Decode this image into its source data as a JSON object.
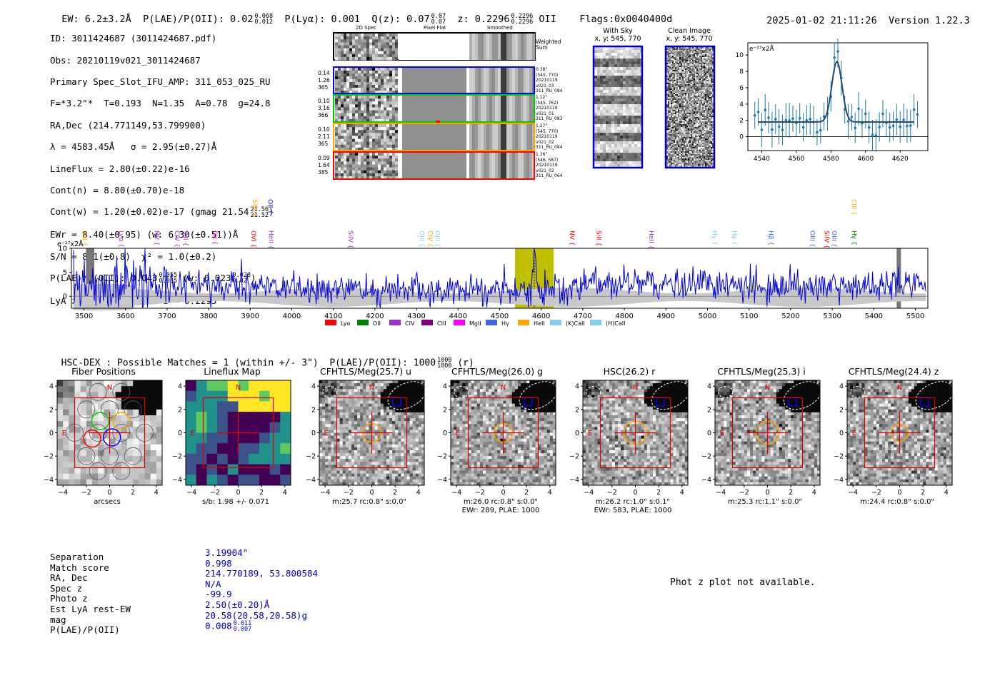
{
  "header": {
    "ew": "EW: 6.2±3.2Å",
    "plae": "P(LAE)/P(OII): 0.02",
    "plae_hi": "0.068",
    "plae_lo": "0.012",
    "plya": "P(Lyα): 0.001",
    "qz": "Q(z): 0.07",
    "qz_hi": "0.07",
    "qz_lo": "0.07",
    "z": "z: 0.2296",
    "z_hi": "0.2296",
    "z_lo": "0.2296",
    "z_line": "OII",
    "flags": "Flags:0x0040400d",
    "datetime": "2025-01-02 21:11:26",
    "version": "Version 1.22.3"
  },
  "info": {
    "l1": "ID: 3011424687 (3011424687.pdf)",
    "l2": "Obs: 20210119v021_3011424687",
    "l3": "Primary Spec_Slot_IFU_AMP: 311_053_025_RU",
    "l4": "F=*3.2\"*  T=0.193  N=1.35  A=0.78  g=24.8",
    "l5": "RA,Dec (214.771149,53.799900)",
    "l6": "λ = 4583.45Å   σ = 2.95(±0.27)Å",
    "l7": "LineFlux = 2.80(±0.22)e-16",
    "l8": "Cont(n) = 8.80(±0.70)e-18",
    "l9": "Cont(w) = 1.20(±0.02)e-17 (gmag 21.54",
    "l9_hi": "21.56",
    "l9_lo": "21.52",
    "l9_end": ")",
    "l10": "EWr = 8.40(±0.95) (w: 6.30(±0.51))Å",
    "l11": "S/N = 8.1(±0.8)  χ² = 1.0(±0.2)",
    "l12": "P(LAE)/P(OII): 0.043",
    "l12_hi": "0.055",
    "l12_lo": "0.035",
    "l12_mid": " (w: 0.023",
    "l12_hi2": "0.028",
    "l12_lo2": "0.02",
    "l12_end": ")",
    "l13": "LyA z = 2.7703   OII z = 0.2295"
  },
  "cutouts": {
    "col_titles": [
      "2D Spec",
      "Pixel Flat",
      "Smoothed"
    ],
    "weighted_sum": "Weighted Sum",
    "rows": [
      {
        "left": [
          "0.14",
          "1.26",
          "365"
        ],
        "right": [
          "0.38\"",
          "(545, 770)",
          "20210119",
          "v021_03",
          "311_RU_084"
        ],
        "color": "#0000ff"
      },
      {
        "left": [
          "0.10",
          "3.16",
          "366"
        ],
        "right": [
          "1.12\"",
          "(545, 762)",
          "20210119",
          "v021_01",
          "311_RU_083"
        ],
        "color": "#00cc00"
      },
      {
        "left": [
          "0.10",
          "2.11",
          "365"
        ],
        "right": [
          "1.27\"",
          "(545, 770)",
          "20210119",
          "v021_02",
          "311_RU_084"
        ],
        "color": "#ffa500"
      },
      {
        "left": [
          "0.09",
          "1.64",
          "385"
        ],
        "right": [
          "1.36\"",
          "(546, 587)",
          "20210119",
          "v021_02",
          "311_RU_064"
        ],
        "color": "#ff0000"
      }
    ],
    "with_sky_title": "With Sky",
    "with_sky_xy": "x, y: 545, 770",
    "clean_title": "Clean Image",
    "clean_xy": "x, y: 545, 770"
  },
  "line_fit": {
    "ylabel": "e⁻¹⁷x2Å",
    "xticks": [
      "4540",
      "4560",
      "4580",
      "4600",
      "4620"
    ],
    "yticks": [
      "0",
      "2",
      "4",
      "6",
      "8",
      "10"
    ]
  },
  "chart_data": {
    "type": "line",
    "title": "",
    "ylabel": "e⁻¹⁷x2Å",
    "xlim": [
      3470,
      5530
    ],
    "ylim": [
      -2.5,
      10
    ],
    "xticks": [
      3500,
      3600,
      3700,
      3800,
      3900,
      4000,
      4100,
      4200,
      4300,
      4400,
      4500,
      4600,
      4700,
      4800,
      4900,
      5000,
      5100,
      5200,
      5300,
      5400,
      5500
    ],
    "yticks": [
      0,
      5,
      10
    ],
    "highlight_range": [
      4537,
      4630
    ],
    "emission_line": 4583.45,
    "masked_ranges": [
      [
        3505,
        3525
      ],
      [
        5455,
        5465
      ]
    ],
    "line_markers": [
      {
        "name": "SiII",
        "x": 3497,
        "color": "#ffa500",
        "row": "low"
      },
      {
        "name": "Lyα",
        "x": 3585,
        "color": "#9932cc",
        "row": "low"
      },
      {
        "name": "NV",
        "x": 3670,
        "color": "#9932cc",
        "row": "low"
      },
      {
        "name": "CIV",
        "x": 3719,
        "color": "#9932cc",
        "row": "low"
      },
      {
        "name": "SiII",
        "x": 3740,
        "color": "#9932cc",
        "row": "low"
      },
      {
        "name": "CII",
        "x": 3810,
        "color": "#ff00ff",
        "row": "low"
      },
      {
        "name": "OVI",
        "x": 3903,
        "color": "#ff0000",
        "row": "low"
      },
      {
        "name": "SiIV",
        "x": 3906,
        "color": "#ffa500",
        "row": "high"
      },
      {
        "name": "OII",
        "x": 3943,
        "color": "#0000ff",
        "row": "high"
      },
      {
        "name": "HeII",
        "x": 3945,
        "color": "#9932cc",
        "row": "low"
      },
      {
        "name": "SiIV",
        "x": 4137,
        "color": "#9932cc",
        "row": "low"
      },
      {
        "name": "OIII",
        "x": 4308,
        "color": "#87ceeb",
        "row": "low"
      },
      {
        "name": "CIV",
        "x": 4328,
        "color": "#ffa500",
        "row": "low"
      },
      {
        "name": "OIII",
        "x": 4345,
        "color": "#87ceeb",
        "row": "low"
      },
      {
        "name": "NV",
        "x": 4669,
        "color": "#ff0000",
        "row": "low"
      },
      {
        "name": "SiII",
        "x": 4734,
        "color": "#ff0000",
        "row": "low"
      },
      {
        "name": "HeII",
        "x": 4860,
        "color": "#9932cc",
        "row": "low"
      },
      {
        "name": "Hγ",
        "x": 5012,
        "color": "#87ceeb",
        "row": "low"
      },
      {
        "name": "Hγ",
        "x": 5060,
        "color": "#87ceeb",
        "row": "low"
      },
      {
        "name": "Hβ",
        "x": 5148,
        "color": "#4169e1",
        "row": "low"
      },
      {
        "name": "OIII",
        "x": 5247,
        "color": "#4169e1",
        "row": "low"
      },
      {
        "name": "SiIV",
        "x": 5282,
        "color": "#ff0000",
        "row": "low"
      },
      {
        "name": "OIII",
        "x": 5300,
        "color": "#4169e1",
        "row": "low"
      },
      {
        "name": "CIII",
        "x": 5347,
        "color": "#ffa500",
        "row": "high"
      },
      {
        "name": "Hγ",
        "x": 5348,
        "color": "#008000",
        "row": "low"
      }
    ],
    "legend": [
      {
        "name": "Lyα",
        "color": "#ff0000"
      },
      {
        "name": "OII",
        "color": "#008000"
      },
      {
        "name": "CIV",
        "color": "#9932cc"
      },
      {
        "name": "CIII",
        "color": "#800080"
      },
      {
        "name": "MgII",
        "color": "#ff00ff"
      },
      {
        "name": "Hγ",
        "color": "#4169e1"
      },
      {
        "name": "HeII",
        "color": "#ffa500"
      },
      {
        "name": "(K)CaII",
        "color": "#87ceeb"
      },
      {
        "name": "(H)CaII",
        "color": "#87ceeb"
      }
    ]
  },
  "match": {
    "header": "HSC-DEX : Possible Matches = 1 (within +/- 3\")  P(LAE)/P(OII): 1000",
    "header_hi": "1000",
    "header_lo": "1000",
    "header_end": "(r)"
  },
  "panels": [
    {
      "title": "Fiber Positions",
      "caption": "arcsecs",
      "caption2": ""
    },
    {
      "title": "Lineflux Map",
      "caption": "s/b: 1.98 +/- 0.071",
      "caption2": ""
    },
    {
      "title": "CFHTLS/Meg(25.7) u",
      "caption": "m:25.7 rc:0.8\"  s:0.0\"",
      "caption2": ""
    },
    {
      "title": "CFHTLS/Meg(26.0) g",
      "caption": "m:26.0 rc:0.8\"  s:0.0\"",
      "caption2": "EWr: 289, PLAE: 1000"
    },
    {
      "title": "HSC(26.2) r",
      "caption": "m:26.2 rc:1.0\"  s:0.1\"",
      "caption2": "EWr: 583, PLAE: 1000"
    },
    {
      "title": "CFHTLS/Meg(25.3) i",
      "caption": "m:25.3 rc:1.1\"  s:0.0\"",
      "caption2": ""
    },
    {
      "title": "CFHTLS/Meg(24.4) z",
      "caption": "m:24.4 rc:0.8\"  s:0.0\"",
      "caption2": ""
    }
  ],
  "panel_ticks": {
    "x": [
      "−4",
      "−2",
      "0",
      "2",
      "4"
    ],
    "y": [
      "4",
      "2",
      "0",
      "−2",
      "−4"
    ],
    "north": "N",
    "east": "E"
  },
  "table": {
    "keys": [
      "Separation",
      "Match score",
      "RA, Dec",
      "Spec z",
      "Photo z",
      "Est LyA rest-EW",
      "mag",
      "P(LAE)/P(OII)"
    ],
    "values": [
      "3.19904\"",
      "0.998",
      "214.770189, 53.800584",
      "N/A",
      "-99.9",
      "2.50(±0.20)Å",
      "20.58(20.58,20.58)g",
      "0.008"
    ],
    "last_hi": "0.011",
    "last_lo": "0.007"
  },
  "photz_note": "Phot z plot not available."
}
